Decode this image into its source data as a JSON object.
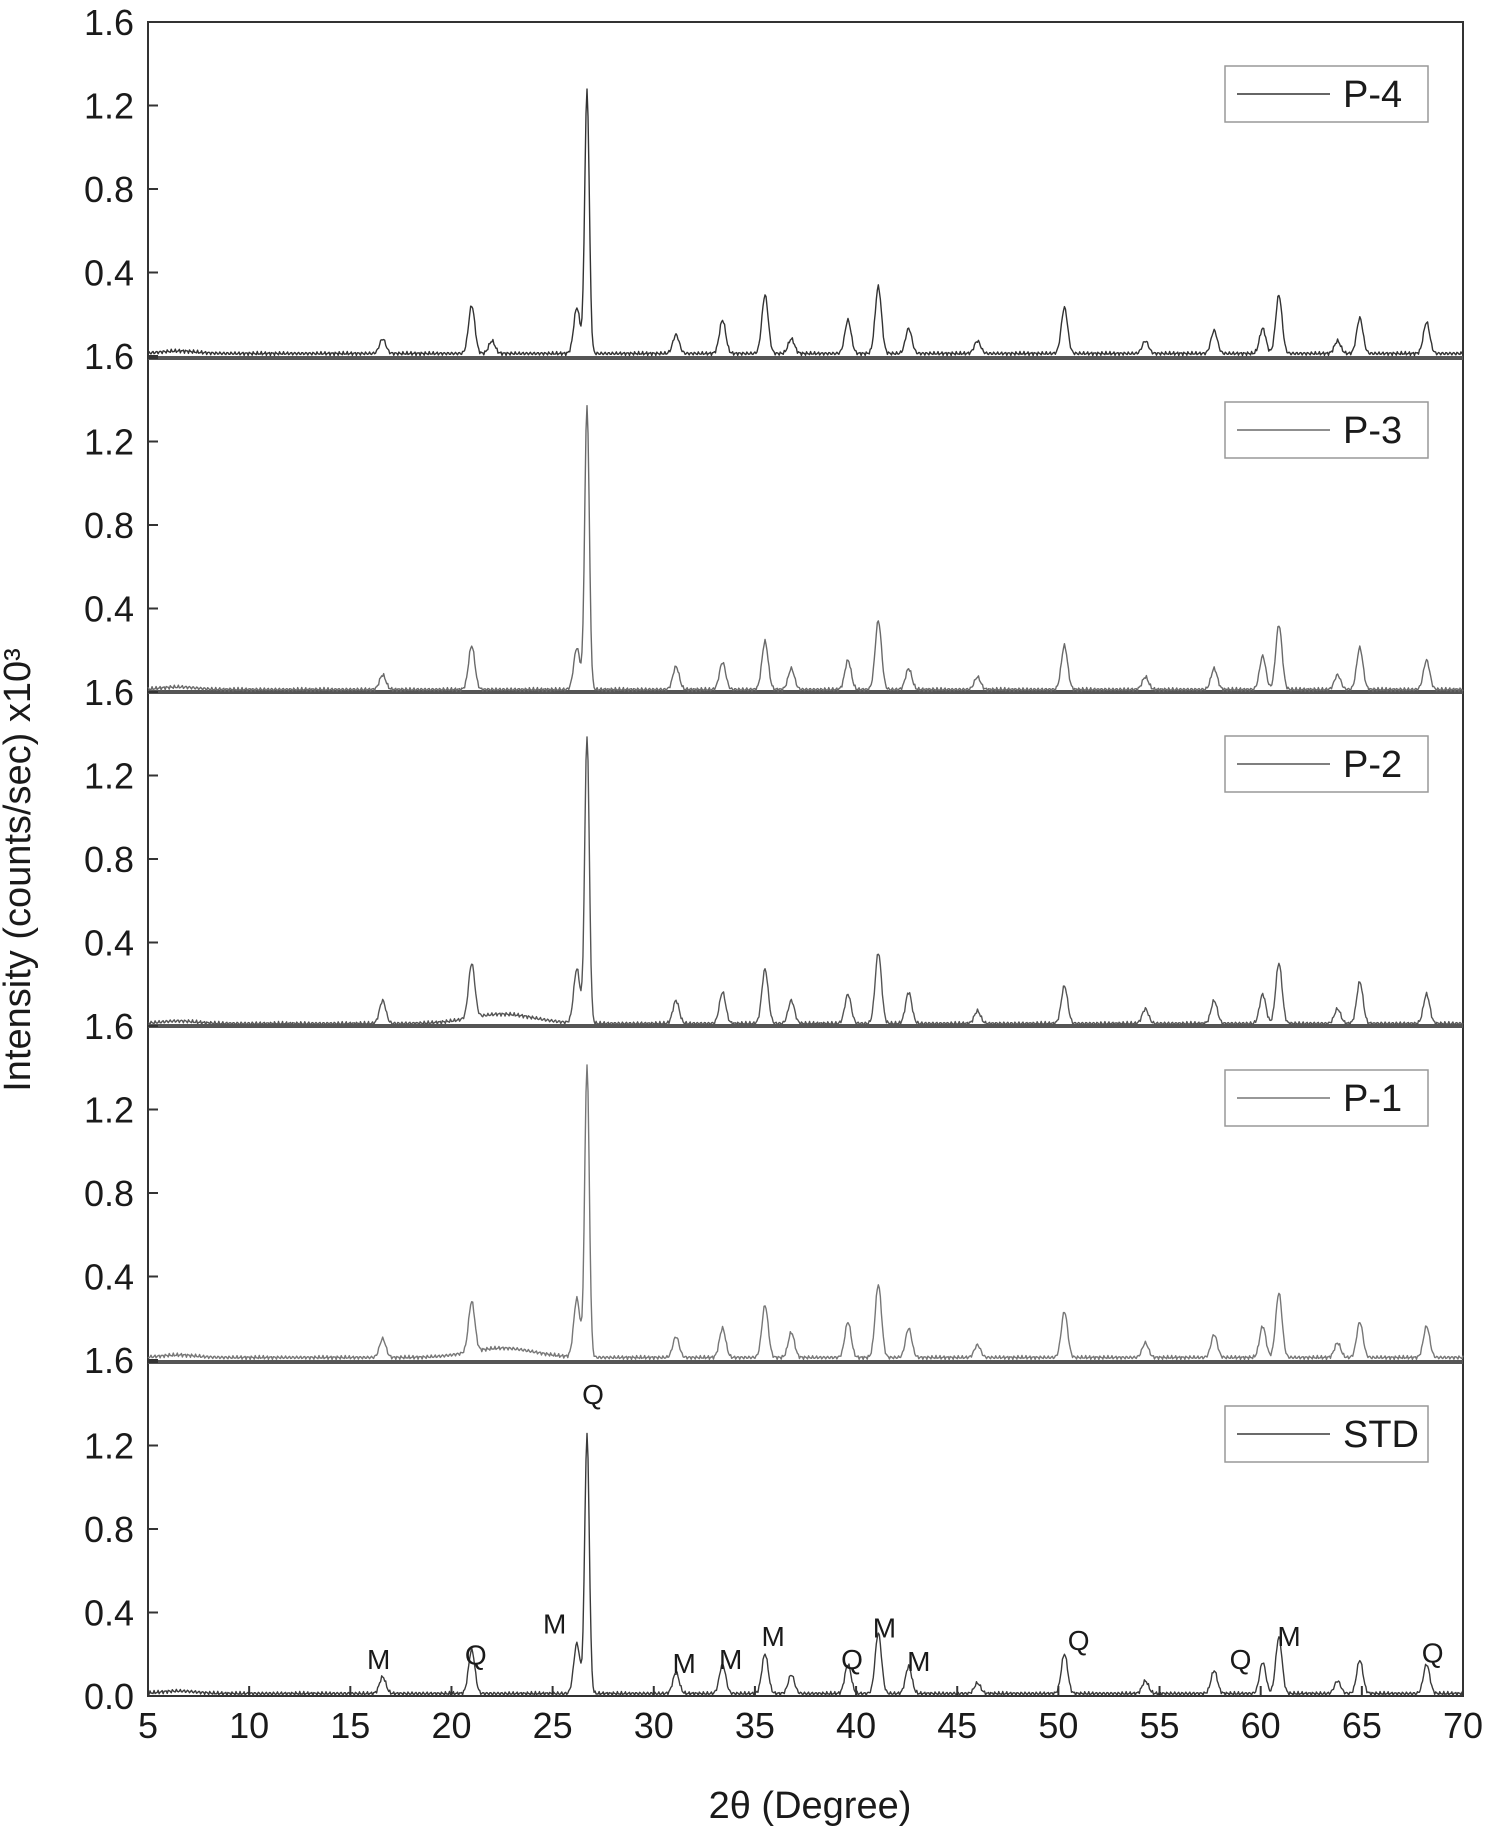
{
  "chart_data": {
    "type": "line",
    "xlabel": "2θ (Degree)",
    "ylabel": "Intensity (counts/sec) x10³",
    "xlim": [
      5,
      70
    ],
    "x_ticks": [
      "5",
      "10",
      "15",
      "20",
      "25",
      "30",
      "35",
      "40",
      "45",
      "50",
      "55",
      "60",
      "65",
      "70"
    ],
    "y_ticks_bottom_panel": [
      "0.0",
      "0.4",
      "0.8",
      "1.2",
      "1.6"
    ],
    "y_ticks_upper_panels": [
      "1.6",
      "0.4",
      "0.8",
      "1.2"
    ],
    "ylim_each_panel": [
      0,
      1.6
    ],
    "panel_order_top_to_bottom": [
      "P-4",
      "P-3",
      "P-2",
      "P-1",
      "STD"
    ],
    "series": [
      {
        "name": "P-4",
        "color": "#333333",
        "peaks": [
          {
            "x": 16.6,
            "y": 0.07
          },
          {
            "x": 21.0,
            "y": 0.23
          },
          {
            "x": 22.0,
            "y": 0.06
          },
          {
            "x": 26.2,
            "y": 0.22
          },
          {
            "x": 26.7,
            "y": 1.26
          },
          {
            "x": 31.1,
            "y": 0.09
          },
          {
            "x": 33.4,
            "y": 0.16
          },
          {
            "x": 35.5,
            "y": 0.28
          },
          {
            "x": 36.8,
            "y": 0.07
          },
          {
            "x": 39.6,
            "y": 0.16
          },
          {
            "x": 41.1,
            "y": 0.32
          },
          {
            "x": 42.6,
            "y": 0.12
          },
          {
            "x": 46.0,
            "y": 0.06
          },
          {
            "x": 50.3,
            "y": 0.22
          },
          {
            "x": 54.3,
            "y": 0.06
          },
          {
            "x": 57.7,
            "y": 0.11
          },
          {
            "x": 60.1,
            "y": 0.12
          },
          {
            "x": 60.9,
            "y": 0.28
          },
          {
            "x": 63.8,
            "y": 0.06
          },
          {
            "x": 64.9,
            "y": 0.17
          },
          {
            "x": 68.2,
            "y": 0.15
          }
        ]
      },
      {
        "name": "P-3",
        "color": "#6a6a6a",
        "peaks": [
          {
            "x": 16.6,
            "y": 0.07
          },
          {
            "x": 21.0,
            "y": 0.21
          },
          {
            "x": 26.2,
            "y": 0.2
          },
          {
            "x": 26.7,
            "y": 1.36
          },
          {
            "x": 31.1,
            "y": 0.11
          },
          {
            "x": 33.4,
            "y": 0.13
          },
          {
            "x": 35.5,
            "y": 0.23
          },
          {
            "x": 36.8,
            "y": 0.1
          },
          {
            "x": 39.6,
            "y": 0.14
          },
          {
            "x": 41.1,
            "y": 0.33
          },
          {
            "x": 42.6,
            "y": 0.1
          },
          {
            "x": 46.0,
            "y": 0.06
          },
          {
            "x": 50.3,
            "y": 0.21
          },
          {
            "x": 54.3,
            "y": 0.06
          },
          {
            "x": 57.7,
            "y": 0.1
          },
          {
            "x": 60.1,
            "y": 0.16
          },
          {
            "x": 60.9,
            "y": 0.31
          },
          {
            "x": 63.8,
            "y": 0.07
          },
          {
            "x": 64.9,
            "y": 0.2
          },
          {
            "x": 68.2,
            "y": 0.14
          }
        ]
      },
      {
        "name": "P-2",
        "color": "#555555",
        "peaks": [
          {
            "x": 16.6,
            "y": 0.11
          },
          {
            "x": 21.0,
            "y": 0.26
          },
          {
            "x": 26.2,
            "y": 0.26
          },
          {
            "x": 26.7,
            "y": 1.38
          },
          {
            "x": 31.1,
            "y": 0.11
          },
          {
            "x": 33.4,
            "y": 0.15
          },
          {
            "x": 35.5,
            "y": 0.26
          },
          {
            "x": 36.8,
            "y": 0.11
          },
          {
            "x": 39.6,
            "y": 0.14
          },
          {
            "x": 41.1,
            "y": 0.34
          },
          {
            "x": 42.6,
            "y": 0.15
          },
          {
            "x": 46.0,
            "y": 0.06
          },
          {
            "x": 50.3,
            "y": 0.18
          },
          {
            "x": 54.3,
            "y": 0.07
          },
          {
            "x": 57.7,
            "y": 0.11
          },
          {
            "x": 60.1,
            "y": 0.14
          },
          {
            "x": 60.9,
            "y": 0.29
          },
          {
            "x": 63.8,
            "y": 0.07
          },
          {
            "x": 64.9,
            "y": 0.2
          },
          {
            "x": 68.2,
            "y": 0.14
          }
        ]
      },
      {
        "name": "P-1",
        "color": "#777777",
        "peaks": [
          {
            "x": 16.6,
            "y": 0.09
          },
          {
            "x": 21.0,
            "y": 0.24
          },
          {
            "x": 26.2,
            "y": 0.28
          },
          {
            "x": 26.7,
            "y": 1.4
          },
          {
            "x": 31.1,
            "y": 0.1
          },
          {
            "x": 33.4,
            "y": 0.14
          },
          {
            "x": 35.5,
            "y": 0.25
          },
          {
            "x": 36.8,
            "y": 0.12
          },
          {
            "x": 39.6,
            "y": 0.17
          },
          {
            "x": 41.1,
            "y": 0.35
          },
          {
            "x": 42.6,
            "y": 0.14
          },
          {
            "x": 46.0,
            "y": 0.06
          },
          {
            "x": 50.3,
            "y": 0.22
          },
          {
            "x": 54.3,
            "y": 0.07
          },
          {
            "x": 57.7,
            "y": 0.11
          },
          {
            "x": 60.1,
            "y": 0.15
          },
          {
            "x": 60.9,
            "y": 0.31
          },
          {
            "x": 63.8,
            "y": 0.07
          },
          {
            "x": 64.9,
            "y": 0.17
          },
          {
            "x": 68.2,
            "y": 0.15
          }
        ]
      },
      {
        "name": "STD",
        "color": "#3a3a3a",
        "peaks": [
          {
            "x": 16.6,
            "y": 0.08
          },
          {
            "x": 21.0,
            "y": 0.21
          },
          {
            "x": 26.2,
            "y": 0.24
          },
          {
            "x": 26.7,
            "y": 1.24
          },
          {
            "x": 31.1,
            "y": 0.1
          },
          {
            "x": 33.4,
            "y": 0.14
          },
          {
            "x": 35.5,
            "y": 0.19
          },
          {
            "x": 36.8,
            "y": 0.09
          },
          {
            "x": 39.6,
            "y": 0.14
          },
          {
            "x": 41.1,
            "y": 0.29
          },
          {
            "x": 42.6,
            "y": 0.13
          },
          {
            "x": 46.0,
            "y": 0.05
          },
          {
            "x": 50.3,
            "y": 0.19
          },
          {
            "x": 54.3,
            "y": 0.06
          },
          {
            "x": 57.7,
            "y": 0.11
          },
          {
            "x": 60.1,
            "y": 0.15
          },
          {
            "x": 60.9,
            "y": 0.27
          },
          {
            "x": 63.8,
            "y": 0.06
          },
          {
            "x": 64.9,
            "y": 0.16
          },
          {
            "x": 68.2,
            "y": 0.14
          }
        ]
      }
    ],
    "annotations": [
      {
        "text": "M",
        "x": 16.4,
        "y": 0.13
      },
      {
        "text": "Q",
        "x": 21.2,
        "y": 0.15
      },
      {
        "text": "M",
        "x": 25.1,
        "y": 0.3
      },
      {
        "text": "Q",
        "x": 27.0,
        "y": 1.4
      },
      {
        "text": "M",
        "x": 31.5,
        "y": 0.11
      },
      {
        "text": "M",
        "x": 33.8,
        "y": 0.13
      },
      {
        "text": "M",
        "x": 35.9,
        "y": 0.24
      },
      {
        "text": "Q",
        "x": 39.8,
        "y": 0.13
      },
      {
        "text": "M",
        "x": 41.4,
        "y": 0.28
      },
      {
        "text": "M",
        "x": 43.1,
        "y": 0.12
      },
      {
        "text": "Q",
        "x": 51.0,
        "y": 0.22
      },
      {
        "text": "Q",
        "x": 59.0,
        "y": 0.13
      },
      {
        "text": "M",
        "x": 61.4,
        "y": 0.24
      },
      {
        "text": "Q",
        "x": 68.5,
        "y": 0.16
      }
    ],
    "legend_placement": "top-right of each panel",
    "grid": false
  }
}
